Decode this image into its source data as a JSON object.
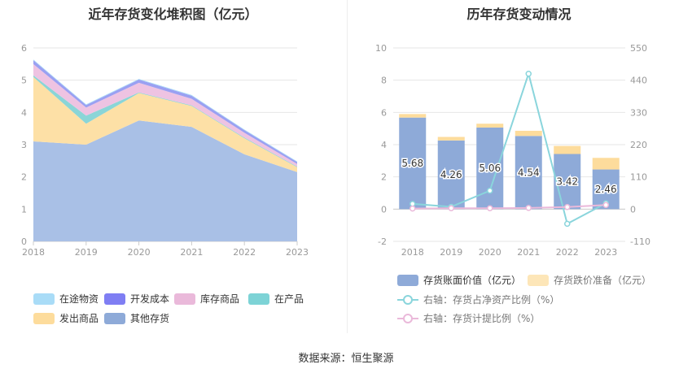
{
  "left_title": "近年存货变化堆积图（亿元）",
  "right_title": "历年存货变动情况",
  "source": "数据来源：恒生聚源",
  "chart_data": [
    {
      "type": "area",
      "stacked": true,
      "title": "近年存货变化堆积图（亿元）",
      "categories": [
        "2018",
        "2019",
        "2020",
        "2021",
        "2022",
        "2023"
      ],
      "ylim": [
        0,
        6
      ],
      "yticks": [
        0,
        1,
        2,
        3,
        4,
        5,
        6
      ],
      "grid": true,
      "legend_position": "bottom",
      "series": [
        {
          "name": "其他存货",
          "color": "#a9c0e6",
          "values": [
            3.1,
            3.0,
            3.75,
            3.55,
            2.7,
            2.15
          ]
        },
        {
          "name": "发出商品",
          "color": "#fde0a6",
          "values": [
            2.0,
            0.65,
            0.85,
            0.65,
            0.5,
            0.15
          ]
        },
        {
          "name": "在产品",
          "color": "#8ad5d7",
          "values": [
            0.05,
            0.25,
            0.02,
            0.02,
            0.02,
            0.02
          ]
        },
        {
          "name": "库存商品",
          "color": "#eec3e2",
          "values": [
            0.35,
            0.25,
            0.3,
            0.2,
            0.15,
            0.08
          ]
        },
        {
          "name": "开发成本",
          "color": "#9aa0f2",
          "values": [
            0.12,
            0.08,
            0.1,
            0.1,
            0.08,
            0.06
          ]
        },
        {
          "name": "在途物资",
          "color": "#a9dcf7",
          "values": [
            0.02,
            0.02,
            0.02,
            0.02,
            0.02,
            0.02
          ]
        }
      ],
      "legend": [
        {
          "name": "在途物资",
          "color": "#a9dcf7"
        },
        {
          "name": "开发成本",
          "color": "#7f7ef3"
        },
        {
          "name": "库存商品",
          "color": "#eab9da"
        },
        {
          "name": "在产品",
          "color": "#7dd3d6"
        },
        {
          "name": "发出商品",
          "color": "#fddc9c"
        },
        {
          "name": "其他存货",
          "color": "#8eaad8"
        }
      ]
    },
    {
      "type": "bar",
      "stacked": true,
      "title": "历年存货变动情况",
      "categories": [
        "2018",
        "2019",
        "2020",
        "2021",
        "2022",
        "2023"
      ],
      "ylim": [
        -2,
        10
      ],
      "yticks": [
        -2,
        0,
        2,
        4,
        6,
        8,
        10
      ],
      "y2lim": [
        -110,
        550
      ],
      "y2ticks": [
        -110,
        0,
        110,
        220,
        330,
        440,
        550
      ],
      "grid": true,
      "legend_position": "bottom",
      "series": [
        {
          "name": "存货账面价值（亿元）",
          "color": "#8eaad8",
          "values": [
            5.68,
            4.26,
            5.06,
            4.54,
            3.42,
            2.46
          ],
          "labels": [
            "5.68",
            "4.26",
            "5.06",
            "4.54",
            "3.42",
            "2.46"
          ]
        },
        {
          "name": "存货跌价准备（亿元）",
          "color": "#fddc9c",
          "values": [
            0.22,
            0.22,
            0.24,
            0.32,
            0.5,
            0.72
          ]
        }
      ],
      "line_series": [
        {
          "name": "右轴：存货占净资产比例（%）",
          "color": "#8ad5dc",
          "axis": "right",
          "values": [
            18,
            8,
            63,
            462,
            -50,
            20
          ]
        },
        {
          "name": "右轴：存货计提比例（%）",
          "color": "#eab9da",
          "axis": "right",
          "values": [
            2,
            3,
            3,
            4,
            7,
            14
          ]
        }
      ]
    }
  ]
}
